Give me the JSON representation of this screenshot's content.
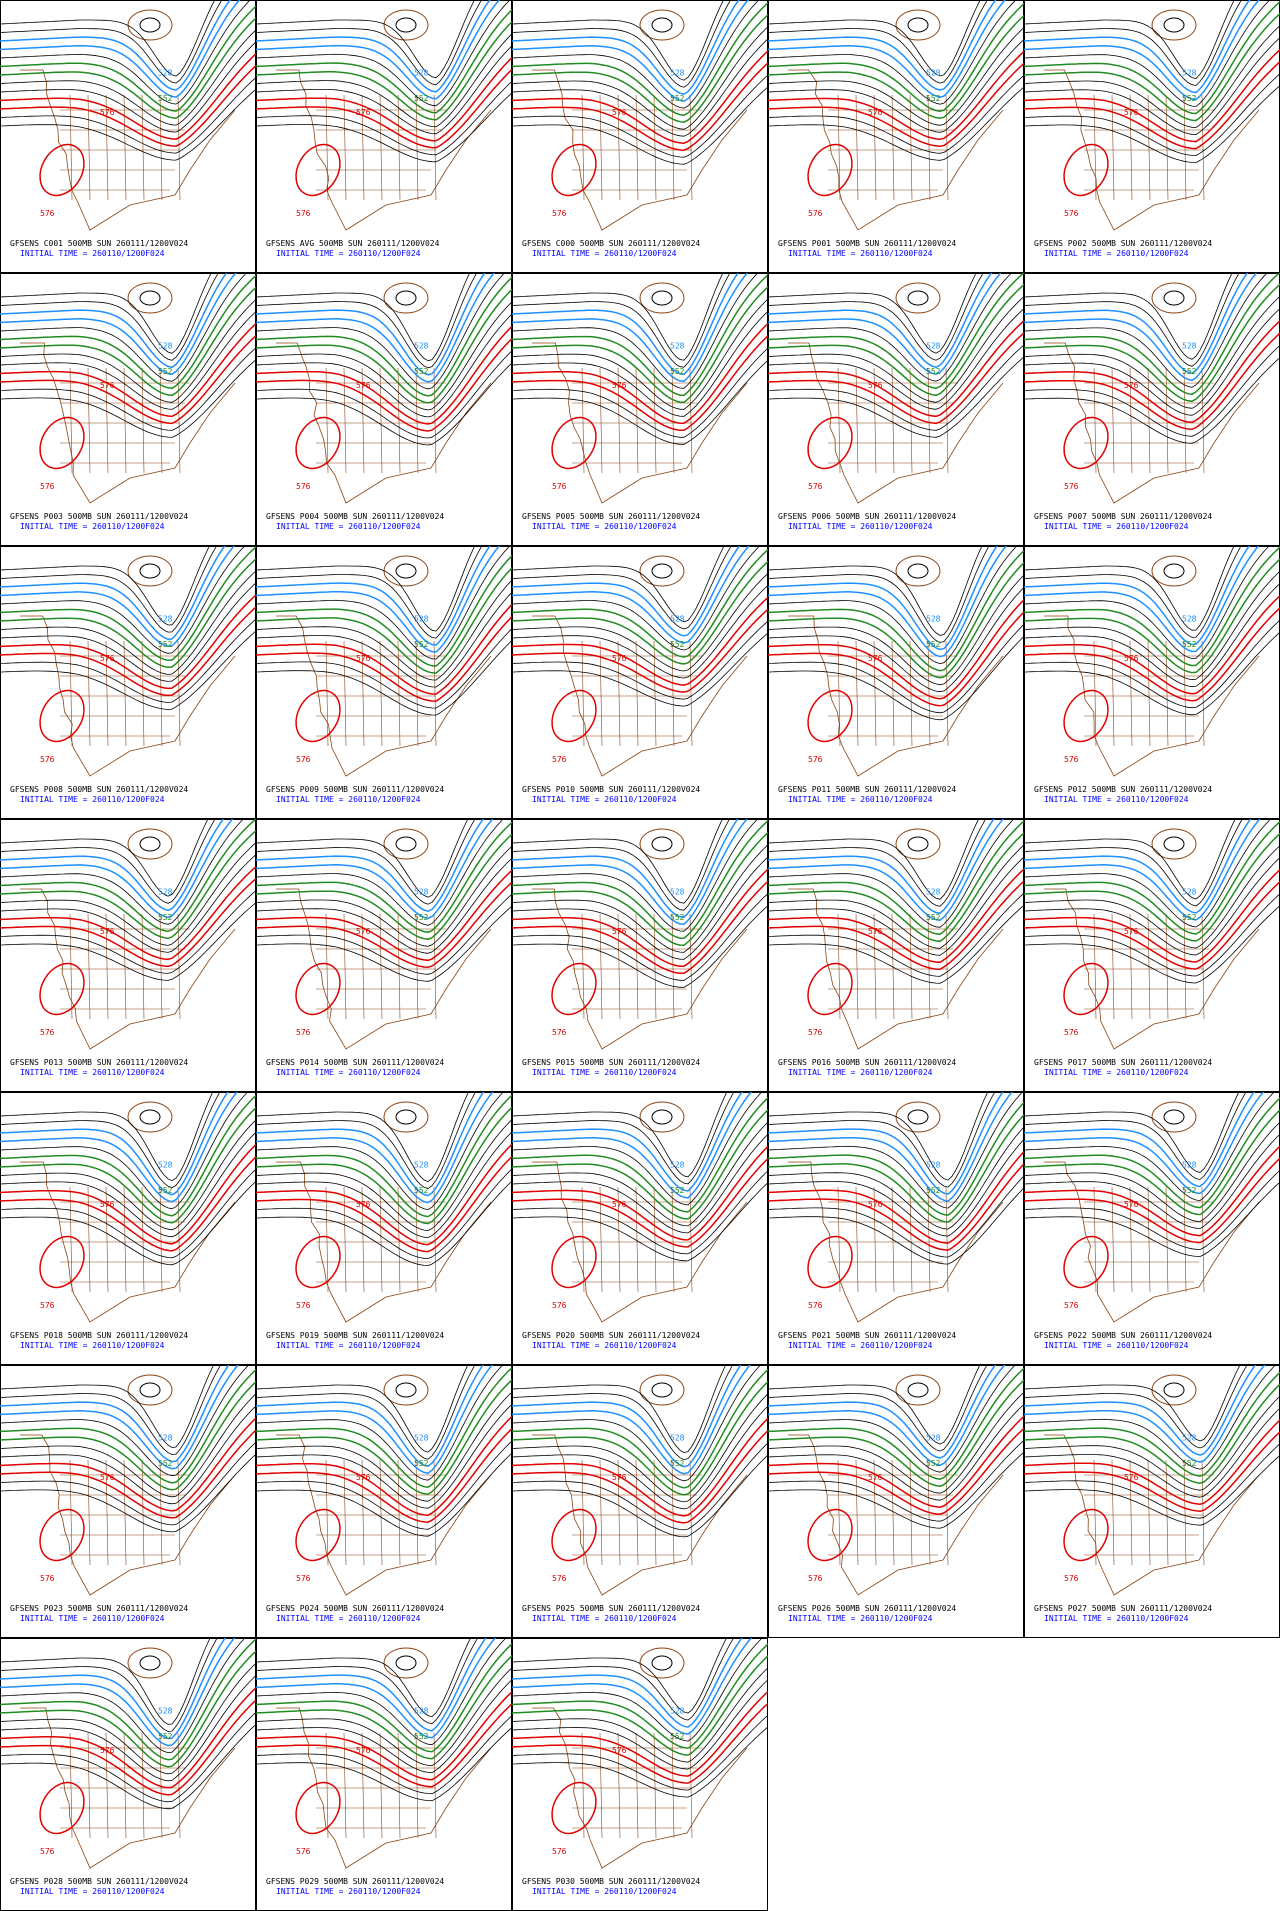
{
  "initial_time": "INITIAL TIME = 260110/1200F024",
  "contour_labels": [
    "528",
    "552",
    "576"
  ],
  "panels": [
    {
      "title": "GFSENS C001 500MB SUN 260111/1200V024"
    },
    {
      "title": "GFSENS AVG 500MB SUN 260111/1200V024"
    },
    {
      "title": "GFSENS C000 500MB SUN 260111/1200V024"
    },
    {
      "title": "GFSENS P001 500MB SUN 260111/1200V024"
    },
    {
      "title": "GFSENS P002 500MB SUN 260111/1200V024"
    },
    {
      "title": "GFSENS P003 500MB SUN 260111/1200V024"
    },
    {
      "title": "GFSENS P004 500MB SUN 260111/1200V024"
    },
    {
      "title": "GFSENS P005 500MB SUN 260111/1200V024"
    },
    {
      "title": "GFSENS P006 500MB SUN 260111/1200V024"
    },
    {
      "title": "GFSENS P007 500MB SUN 260111/1200V024"
    },
    {
      "title": "GFSENS P008 500MB SUN 260111/1200V024"
    },
    {
      "title": "GFSENS P009 500MB SUN 260111/1200V024"
    },
    {
      "title": "GFSENS P010 500MB SUN 260111/1200V024"
    },
    {
      "title": "GFSENS P011 500MB SUN 260111/1200V024"
    },
    {
      "title": "GFSENS P012 500MB SUN 260111/1200V024"
    },
    {
      "title": "GFSENS P013 500MB SUN 260111/1200V024"
    },
    {
      "title": "GFSENS P014 500MB SUN 260111/1200V024"
    },
    {
      "title": "GFSENS P015 500MB SUN 260111/1200V024"
    },
    {
      "title": "GFSENS P016 500MB SUN 260111/1200V024"
    },
    {
      "title": "GFSENS P017 500MB SUN 260111/1200V024"
    },
    {
      "title": "GFSENS P018 500MB SUN 260111/1200V024"
    },
    {
      "title": "GFSENS P019 500MB SUN 260111/1200V024"
    },
    {
      "title": "GFSENS P020 500MB SUN 260111/1200V024"
    },
    {
      "title": "GFSENS P021 500MB SUN 260111/1200V024"
    },
    {
      "title": "GFSENS P022 500MB SUN 260111/1200V024"
    },
    {
      "title": "GFSENS P023 500MB SUN 260111/1200V024"
    },
    {
      "title": "GFSENS P024 500MB SUN 260111/1200V024"
    },
    {
      "title": "GFSENS P025 500MB SUN 260111/1200V024"
    },
    {
      "title": "GFSENS P026 500MB SUN 260111/1200V024"
    },
    {
      "title": "GFSENS P027 500MB SUN 260111/1200V024"
    },
    {
      "title": "GFSENS P028 500MB SUN 260111/1200V024"
    },
    {
      "title": "GFSENS P029 500MB SUN 260111/1200V024"
    },
    {
      "title": "GFSENS P030 500MB SUN 260111/1200V024"
    }
  ]
}
